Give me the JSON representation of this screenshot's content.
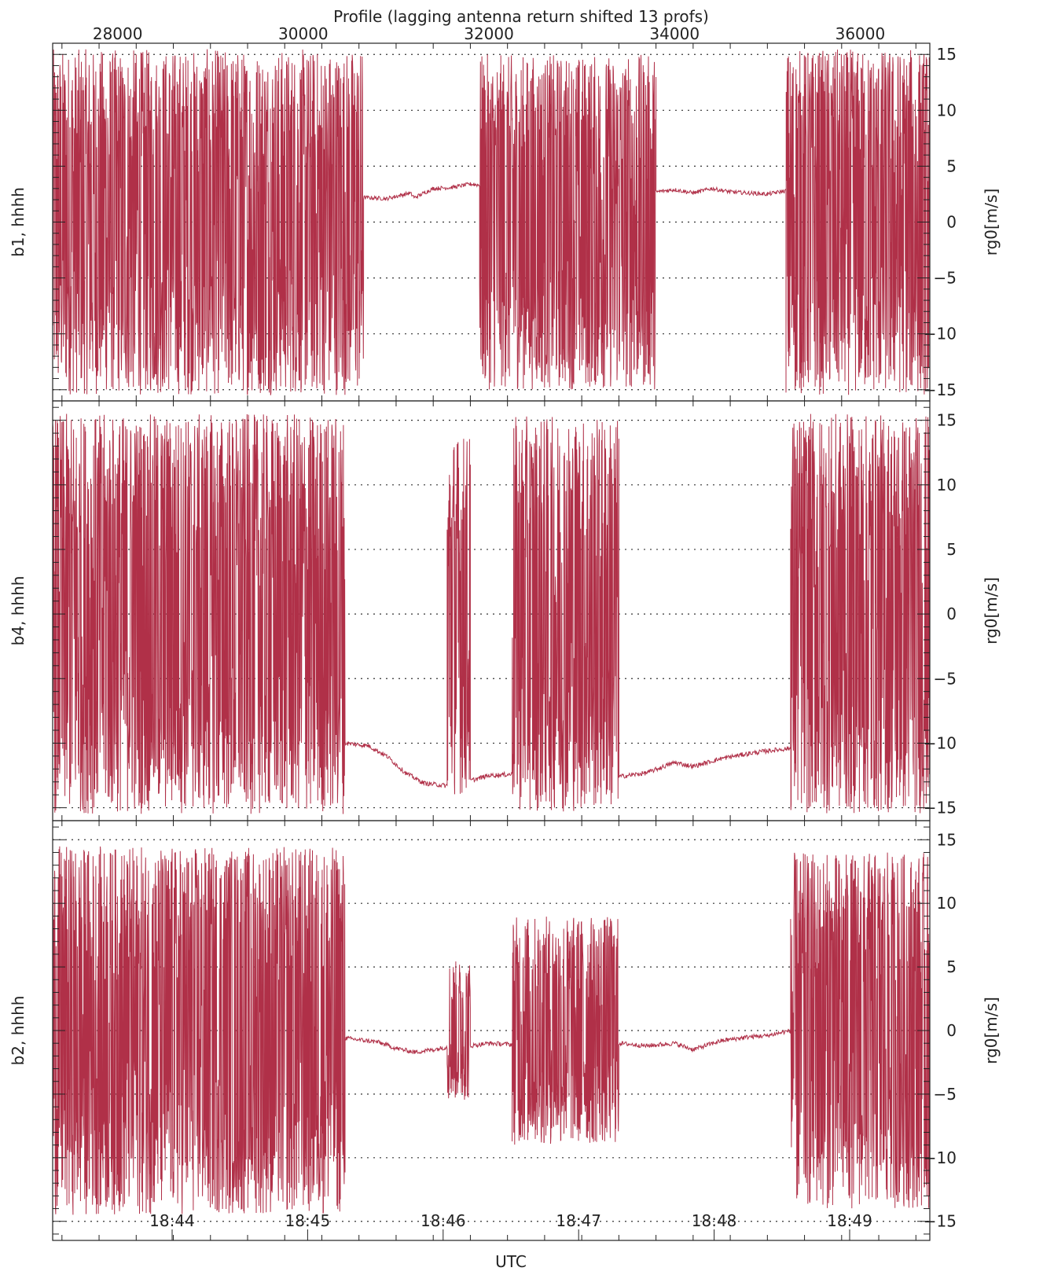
{
  "figure": {
    "top_axis_title": "Profile (lagging antenna return shifted 13 profs)",
    "bottom_axis_title": "UTC",
    "line_color": "#b03048",
    "top_ticks": [
      28000,
      30000,
      32000,
      34000,
      36000
    ],
    "top_tick_labels": [
      "28000",
      "30000",
      "32000",
      "34000",
      "36000"
    ],
    "bottom_ticks": [
      "18:44",
      "18:45",
      "18:46",
      "18:47",
      "18:48",
      "18:49"
    ],
    "y_tick_labels": [
      "15",
      "10",
      "5",
      "0",
      "−5",
      "−10",
      "−15"
    ],
    "right_axis_label": "rg0[m/s]"
  },
  "chart_data": [
    {
      "type": "line",
      "panel_label": "b1, hhhh",
      "ylabel_right": "rg0[m/s]",
      "xlabel": "UTC",
      "x_units": "profile",
      "xlim": [
        27300,
        36750
      ],
      "ylim": [
        -16,
        16
      ],
      "yticks": [
        15,
        10,
        5,
        0,
        -5,
        -10,
        -15
      ],
      "grid": true,
      "segments": [
        {
          "x_start": 27300,
          "x_end": 30650,
          "kind": "noise",
          "amplitude": 15.5,
          "center": 0
        },
        {
          "x_start": 30650,
          "x_end": 31900,
          "kind": "calm",
          "points": [
            [
              30650,
              2.2
            ],
            [
              30900,
              2.1
            ],
            [
              31000,
              2.3
            ],
            [
              31150,
              2.6
            ],
            [
              31200,
              2.2
            ],
            [
              31400,
              3.0
            ],
            [
              31600,
              3.1
            ],
            [
              31800,
              3.4
            ],
            [
              31900,
              3.3
            ]
          ]
        },
        {
          "x_start": 31900,
          "x_end": 33800,
          "kind": "noise",
          "amplitude": 15.0,
          "center": 0
        },
        {
          "x_start": 33800,
          "x_end": 35200,
          "kind": "calm",
          "points": [
            [
              33800,
              2.7
            ],
            [
              34000,
              2.9
            ],
            [
              34200,
              2.6
            ],
            [
              34400,
              3.0
            ],
            [
              34600,
              2.7
            ],
            [
              34800,
              2.6
            ],
            [
              35000,
              2.5
            ],
            [
              35200,
              2.8
            ]
          ]
        },
        {
          "x_start": 35200,
          "x_end": 36750,
          "kind": "noise",
          "amplitude": 15.5,
          "center": 0
        }
      ]
    },
    {
      "type": "line",
      "panel_label": "b4, hhhh",
      "ylabel_right": "rg0[m/s]",
      "xlabel": "UTC",
      "x_units": "profile",
      "xlim": [
        27300,
        36750
      ],
      "ylim": [
        -16,
        16.5
      ],
      "yticks": [
        15,
        10,
        5,
        0,
        -5,
        -10,
        -15
      ],
      "grid": true,
      "segments": [
        {
          "x_start": 27300,
          "x_end": 30450,
          "kind": "noise",
          "amplitude": 15.5,
          "center": 0
        },
        {
          "x_start": 30450,
          "x_end": 31550,
          "kind": "calm",
          "points": [
            [
              30450,
              -10.0
            ],
            [
              30700,
              -10.2
            ],
            [
              30900,
              -11.0
            ],
            [
              31100,
              -12.3
            ],
            [
              31300,
              -13.1
            ],
            [
              31550,
              -13.3
            ]
          ]
        },
        {
          "x_start": 31550,
          "x_end": 31800,
          "kind": "noise",
          "amplitude": 14.0,
          "center": 0
        },
        {
          "x_start": 31800,
          "x_end": 32250,
          "kind": "calm",
          "points": [
            [
              31800,
              -12.9
            ],
            [
              32000,
              -12.5
            ],
            [
              32250,
              -12.4
            ]
          ]
        },
        {
          "x_start": 32250,
          "x_end": 33400,
          "kind": "noise",
          "amplitude": 15.3,
          "center": 0
        },
        {
          "x_start": 33400,
          "x_end": 35250,
          "kind": "calm",
          "points": [
            [
              33400,
              -12.6
            ],
            [
              33700,
              -12.3
            ],
            [
              34000,
              -11.5
            ],
            [
              34200,
              -11.8
            ],
            [
              34500,
              -11.2
            ],
            [
              34800,
              -10.8
            ],
            [
              35000,
              -10.6
            ],
            [
              35250,
              -10.4
            ]
          ]
        },
        {
          "x_start": 35250,
          "x_end": 36750,
          "kind": "noise",
          "amplitude": 15.5,
          "center": 0
        }
      ]
    },
    {
      "type": "line",
      "panel_label": "b2, hhhh",
      "ylabel_right": "rg0[m/s]",
      "xlabel": "UTC",
      "x_units": "profile",
      "xlim": [
        27300,
        36750
      ],
      "ylim": [
        -16.5,
        16.5
      ],
      "yticks": [
        15,
        10,
        5,
        0,
        -5,
        -10,
        -15
      ],
      "grid": true,
      "segments": [
        {
          "x_start": 27300,
          "x_end": 30450,
          "kind": "noise",
          "amplitude": 14.5,
          "center": 0
        },
        {
          "x_start": 30450,
          "x_end": 31550,
          "kind": "calm",
          "points": [
            [
              30450,
              -0.6
            ],
            [
              30800,
              -0.9
            ],
            [
              31000,
              -1.4
            ],
            [
              31200,
              -1.7
            ],
            [
              31400,
              -1.5
            ],
            [
              31550,
              -1.3
            ]
          ]
        },
        {
          "x_start": 31550,
          "x_end": 31800,
          "kind": "noise",
          "amplitude": 5.5,
          "center": 0
        },
        {
          "x_start": 31800,
          "x_end": 32250,
          "kind": "calm",
          "points": [
            [
              31800,
              -1.2
            ],
            [
              32000,
              -1.0
            ],
            [
              32250,
              -1.1
            ]
          ]
        },
        {
          "x_start": 32250,
          "x_end": 33400,
          "kind": "noise",
          "amplitude": 9.0,
          "center": 0
        },
        {
          "x_start": 33400,
          "x_end": 35250,
          "kind": "calm",
          "points": [
            [
              33400,
              -1.0
            ],
            [
              33700,
              -1.2
            ],
            [
              34000,
              -1.0
            ],
            [
              34200,
              -1.5
            ],
            [
              34500,
              -0.8
            ],
            [
              34800,
              -0.5
            ],
            [
              35000,
              -0.4
            ],
            [
              35250,
              0.0
            ]
          ]
        },
        {
          "x_start": 35250,
          "x_end": 36750,
          "kind": "noise",
          "amplitude": 14.0,
          "center": 0
        }
      ]
    }
  ]
}
